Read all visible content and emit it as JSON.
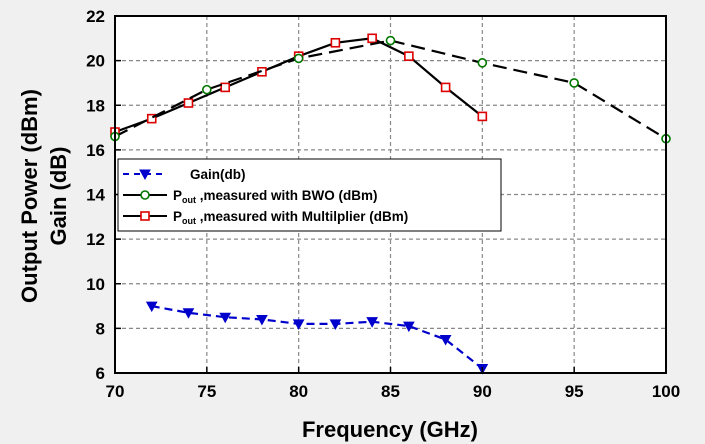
{
  "chart_data": {
    "type": "line",
    "xlabel": "Frequency (GHz)",
    "ylabel_line1": "Output Power (dBm)",
    "ylabel_line2": "Gain (dB)",
    "xlim": [
      70,
      100
    ],
    "ylim": [
      6,
      22
    ],
    "xticks": [
      70,
      75,
      80,
      85,
      90,
      95,
      100
    ],
    "yticks": [
      6,
      8,
      10,
      12,
      14,
      16,
      18,
      20,
      22
    ],
    "grid": true,
    "legend_placement": "center-left",
    "legend": [
      {
        "text": "Gain(db)"
      },
      {
        "prefix": "P",
        "sub": "out",
        "text": " ,measured with BWO (dBm)"
      },
      {
        "prefix": "P",
        "sub": "out",
        "text": " ,measured with Multilplier (dBm)"
      }
    ],
    "series": [
      {
        "key": "gain",
        "color": "#0000cc",
        "line": "dashed",
        "marker": "triangle-down",
        "x": [
          72,
          74,
          76,
          78,
          80,
          82,
          84,
          86,
          88,
          90
        ],
        "y": [
          9.0,
          8.7,
          8.5,
          8.4,
          8.2,
          8.2,
          8.3,
          8.1,
          7.5,
          6.2
        ]
      },
      {
        "key": "bwo",
        "color": "#007700",
        "line": "dashed",
        "marker": "circle",
        "x": [
          70,
          75,
          80,
          85,
          90,
          95,
          100
        ],
        "y": [
          16.6,
          18.7,
          20.1,
          20.9,
          19.9,
          19.0,
          16.5
        ]
      },
      {
        "key": "multiplier",
        "color": "#dd0000",
        "line": "solid",
        "marker": "square",
        "x": [
          70,
          72,
          74,
          76,
          78,
          80,
          82,
          84,
          86,
          88,
          90
        ],
        "y": [
          16.8,
          17.4,
          18.1,
          18.8,
          19.5,
          20.2,
          20.8,
          21.0,
          20.2,
          18.8,
          17.5
        ]
      }
    ]
  }
}
